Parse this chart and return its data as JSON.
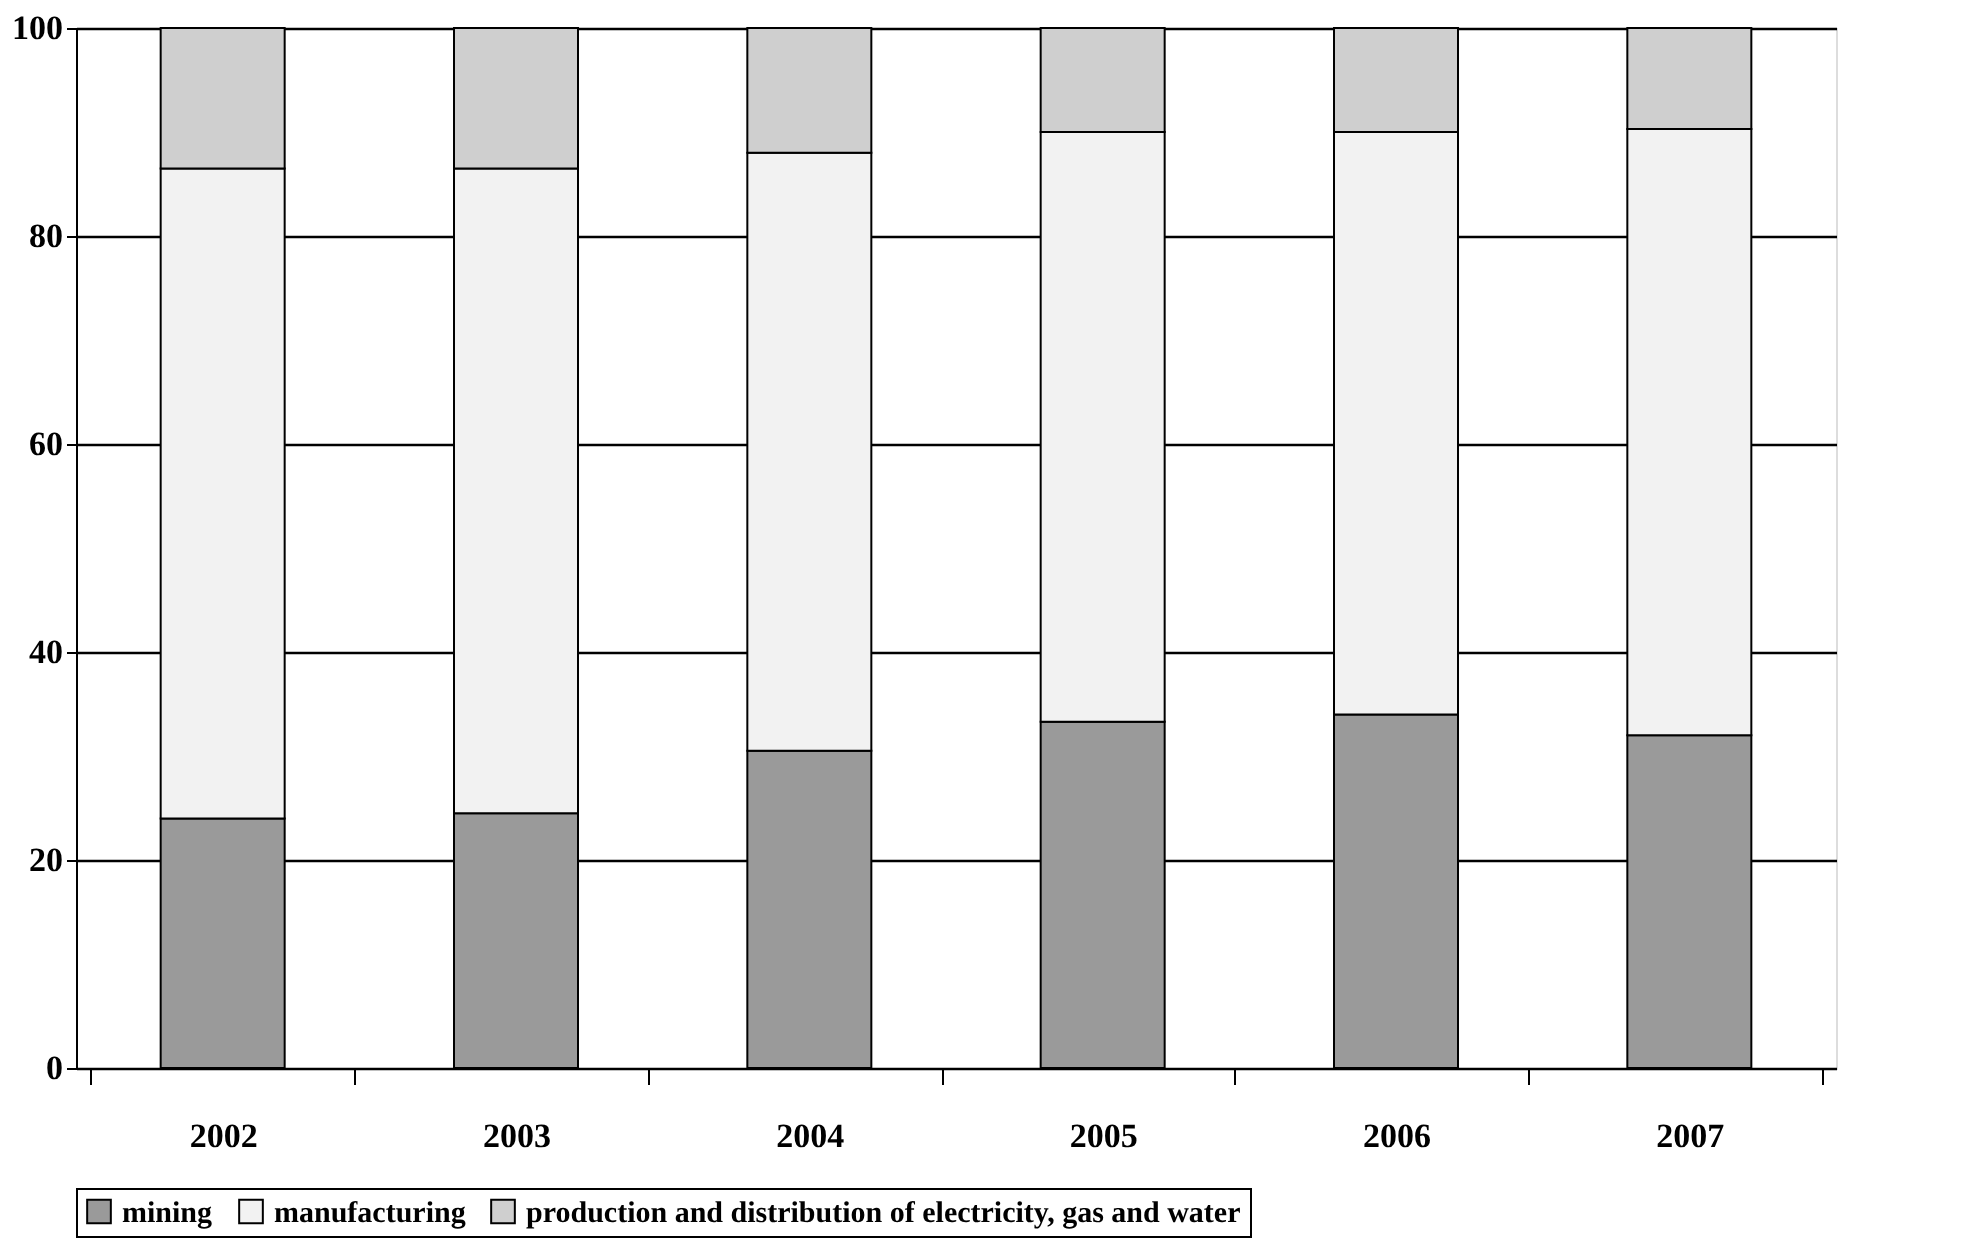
{
  "chart_data": {
    "type": "bar",
    "stacked": true,
    "categories": [
      "2002",
      "2003",
      "2004",
      "2005",
      "2006",
      "2007"
    ],
    "series": [
      {
        "name": "mining",
        "color": "#9a9a9a",
        "values": [
          24,
          24.5,
          30.5,
          33.3,
          34,
          32
        ]
      },
      {
        "name": "manufacturing",
        "color": "#f2f2f2",
        "values": [
          62.5,
          62,
          57.5,
          56.7,
          56,
          58.3
        ]
      },
      {
        "name": "production and distribution of electricity, gas and water",
        "color": "#cfcfcf",
        "values": [
          13.5,
          13.5,
          12,
          10,
          10,
          9.7
        ]
      }
    ],
    "ylim": [
      0,
      100
    ],
    "yticks": [
      0,
      20,
      40,
      60,
      80,
      100
    ],
    "grid": "y",
    "legend": "bottom"
  }
}
